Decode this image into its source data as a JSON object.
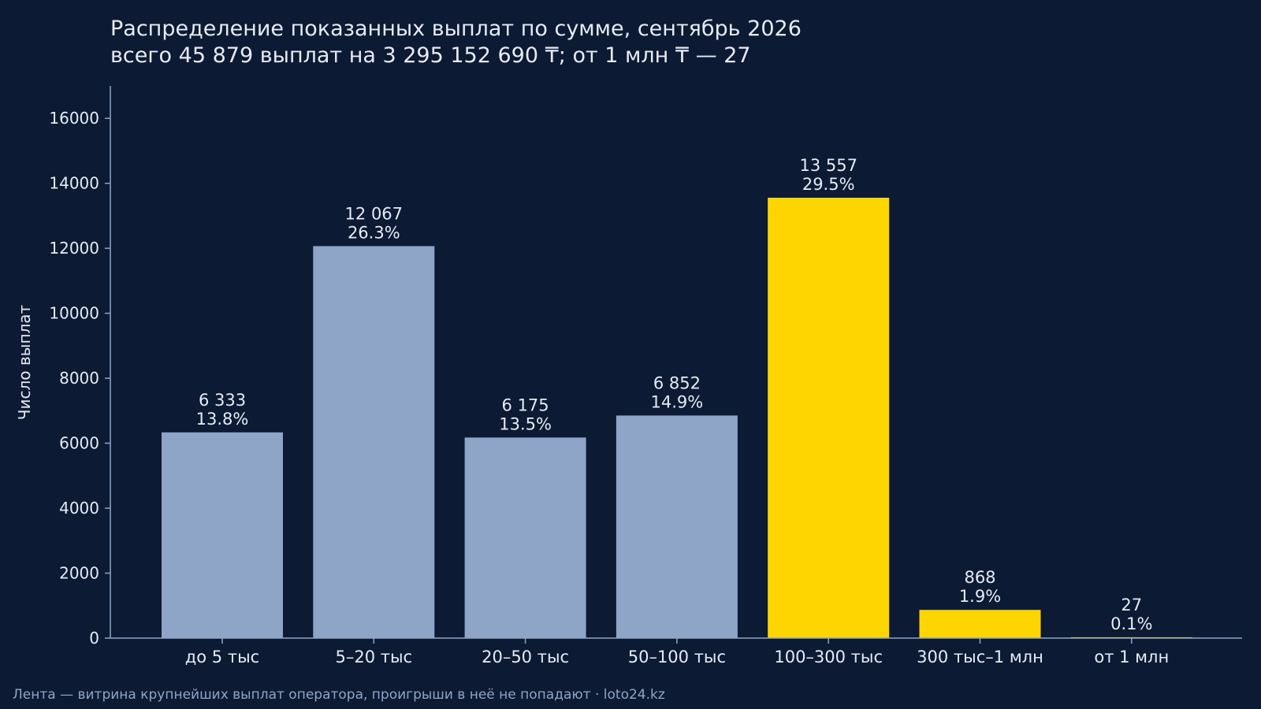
{
  "colors": {
    "background": "#0c1a33",
    "bar_default": "#8fa5c7",
    "bar_highlight": "#ffd500",
    "text": "#e6ebf5",
    "axis": "#8fa5c7",
    "footer": "#8fa5c7"
  },
  "chart_data": {
    "type": "bar",
    "title": "Распределение показанных выплат по сумме, сентябрь 2026",
    "subtitle": "всего 45 879 выплат на 3 295 152 690 ₸; от 1 млн ₸ — 27",
    "xlabel": "",
    "ylabel": "Число выплат",
    "ylim": [
      0,
      17000
    ],
    "yticks": [
      0,
      2000,
      4000,
      6000,
      8000,
      10000,
      12000,
      14000,
      16000
    ],
    "grid": false,
    "legend": "none",
    "categories": [
      "до 5 тыс",
      "5–20 тыс",
      "20–50 тыс",
      "50–100 тыс",
      "100–300 тыс",
      "300 тыс–1 млн",
      "от 1 млн"
    ],
    "values": [
      6333,
      12067,
      6175,
      6852,
      13557,
      868,
      27
    ],
    "value_labels": [
      "6 333",
      "12 067",
      "6 175",
      "6 852",
      "13 557",
      "868",
      "27"
    ],
    "percent_labels": [
      "13.8%",
      "26.3%",
      "13.5%",
      "14.9%",
      "29.5%",
      "1.9%",
      "0.1%"
    ],
    "highlighted": [
      false,
      false,
      false,
      false,
      true,
      true,
      true
    ]
  },
  "footer": "Лента — витрина крупнейших выплат оператора, проигрыши в неё не попадают · loto24.kz"
}
